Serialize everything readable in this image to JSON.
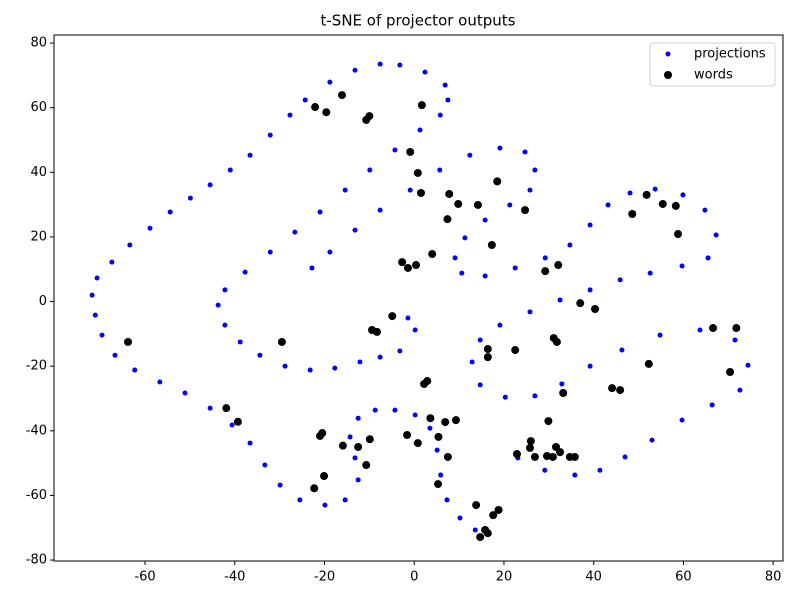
{
  "chart_data": {
    "type": "scatter",
    "title": "t-SNE of projector outputs",
    "xlim": [
      -80.3,
      82.2
    ],
    "ylim": [
      -80.3,
      82.5
    ],
    "xticks": [
      -60,
      -40,
      -20,
      0,
      20,
      40,
      60,
      80
    ],
    "yticks": [
      -80,
      -60,
      -40,
      -20,
      0,
      20,
      40,
      60,
      80
    ],
    "grid": false,
    "legend": "upper right",
    "series": [
      {
        "name": "projections",
        "color": "#0000ff",
        "x": [
          -1.4,
          0.2,
          -3.2,
          -7.6,
          -12.1,
          -17.7,
          -23.2,
          -28.8,
          -34.4,
          -38.8,
          -42.2,
          -43.7,
          -42.2,
          -37.7,
          -32.1,
          -26.6,
          -21.0,
          -15.4,
          -9.9,
          -4.3,
          1.3,
          5.8,
          7.5,
          6.9,
          2.4,
          -3.2,
          -7.6,
          -13.2,
          -18.8,
          -24.3,
          -27.7,
          -32.1,
          -36.6,
          -41.0,
          -45.5,
          -49.9,
          -54.4,
          -58.9,
          -63.4,
          -67.4,
          -70.7,
          -71.8,
          -71.1,
          -69.6,
          -66.7,
          -62.3,
          -56.7,
          -51.1,
          -45.5,
          -40.6,
          -36.6,
          -33.3,
          -29.9,
          -25.5,
          -19.9,
          -15.4,
          -12.5,
          -13.2,
          -14.3,
          -12.5,
          -8.7,
          -4.3,
          0.2,
          3.5,
          5.1,
          5.9,
          7.3,
          10.2,
          13.6,
          -22.8,
          -18.8,
          -13.2,
          -7.6,
          -0.9,
          5.7,
          12.4,
          19.1,
          24.7,
          26.9,
          25.8,
          21.3,
          15.8,
          11.3,
          9.1,
          10.6,
          15.8,
          22.5,
          29.2,
          34.7,
          39.2,
          43.2,
          48.1,
          53.7,
          59.9,
          64.8,
          67.3,
          65.5,
          59.7,
          52.6,
          45.9,
          39.2,
          32.5,
          25.8,
          19.1,
          14.7,
          12.9,
          14.7,
          20.3,
          26.9,
          32.9,
          39.2,
          46.3,
          54.8,
          63.7,
          71.5,
          74.4,
          72.6,
          66.4,
          59.7,
          53.0,
          47.0,
          41.4,
          35.8,
          29.1,
          23.1
        ],
        "values": [
          -5.1,
          -8.8,
          -15.3,
          -17.2,
          -18.7,
          -20.6,
          -21.2,
          -20.0,
          -16.6,
          -12.5,
          -7.3,
          -1.1,
          3.6,
          9.1,
          15.3,
          21.5,
          27.7,
          34.5,
          40.7,
          46.9,
          53.1,
          57.7,
          62.4,
          67.0,
          71.0,
          73.2,
          73.5,
          71.6,
          67.9,
          62.4,
          57.7,
          51.5,
          45.3,
          40.7,
          36.1,
          32.0,
          27.7,
          22.7,
          17.5,
          12.2,
          7.3,
          2.0,
          -4.2,
          -10.4,
          -16.6,
          -21.2,
          -24.9,
          -28.3,
          -33.0,
          -38.2,
          -43.8,
          -50.6,
          -56.8,
          -61.4,
          -63.0,
          -61.4,
          -55.2,
          -48.4,
          -41.9,
          -36.1,
          -33.6,
          -33.6,
          -35.1,
          -39.2,
          -46.0,
          -53.7,
          -61.4,
          -67.0,
          -70.7,
          10.4,
          15.3,
          22.1,
          28.3,
          34.5,
          40.7,
          45.3,
          47.5,
          46.3,
          40.7,
          34.5,
          29.9,
          25.2,
          19.7,
          13.5,
          8.8,
          7.9,
          10.4,
          13.5,
          17.5,
          23.7,
          29.9,
          33.6,
          34.8,
          33.0,
          28.3,
          20.6,
          13.5,
          11.0,
          8.8,
          6.7,
          3.6,
          0.5,
          -3.2,
          -7.3,
          -11.9,
          -18.7,
          -25.8,
          -29.6,
          -29.2,
          -25.5,
          -20.0,
          -15.0,
          -10.4,
          -8.8,
          -11.9,
          -19.7,
          -27.4,
          -32.0,
          -36.7,
          -42.9,
          -48.1,
          -52.2,
          -53.7,
          -52.2,
          -48.4
        ]
      },
      {
        "name": "words",
        "color": "#000000",
        "x": [
          -22.1,
          -19.6,
          -16.1,
          -10.7,
          -10.0,
          1.7,
          -0.9,
          0.8,
          1.5,
          7.4,
          7.8,
          9.8,
          14.2,
          18.5,
          24.7,
          17.3,
          4.0,
          -2.7,
          -1.4,
          0.4,
          -4.9,
          -9.4,
          -8.3,
          -29.5,
          -63.8,
          29.2,
          32.1,
          37.0,
          40.3,
          48.6,
          51.8,
          55.4,
          58.3,
          58.8,
          16.4,
          16.4,
          22.5,
          31.1,
          31.8,
          33.2,
          44.1,
          45.9,
          52.3,
          66.6,
          71.8,
          70.4,
          -41.9,
          -39.3,
          -20.5,
          -21.0,
          -9.9,
          -15.9,
          -12.5,
          -10.7,
          -20.1,
          -22.3,
          -1.6,
          0.8,
          3.6,
          5.4,
          6.9,
          9.3,
          2.2,
          2.9,
          7.5,
          5.3,
          13.8,
          14.7,
          16.4,
          15.8,
          17.6,
          18.8,
          22.9,
          26.0,
          25.8,
          26.9,
          29.9,
          29.6,
          30.9,
          32.5,
          34.7,
          35.8,
          31.6
        ],
        "values": [
          60.2,
          58.6,
          63.9,
          56.2,
          57.4,
          60.8,
          46.3,
          39.8,
          33.6,
          25.5,
          33.3,
          30.2,
          29.9,
          37.2,
          28.3,
          17.5,
          14.7,
          12.2,
          10.4,
          11.3,
          -4.5,
          -8.8,
          -9.4,
          -12.5,
          -12.5,
          9.4,
          11.3,
          -0.5,
          -2.3,
          27.1,
          33.0,
          30.2,
          29.6,
          20.9,
          -14.7,
          -17.2,
          -15.0,
          -11.3,
          -12.5,
          -28.3,
          -26.8,
          -27.4,
          -19.3,
          -8.2,
          -8.2,
          -21.8,
          -33.0,
          -37.2,
          -40.7,
          -41.6,
          -42.6,
          -44.6,
          -45.0,
          -50.6,
          -54.0,
          -57.8,
          -41.3,
          -43.8,
          -36.1,
          -41.9,
          -37.3,
          -36.7,
          -25.5,
          -24.6,
          -48.1,
          -56.5,
          -63.0,
          -72.9,
          -71.7,
          -70.7,
          -66.1,
          -64.5,
          -47.2,
          -43.2,
          -45.3,
          -48.1,
          -37.0,
          -47.8,
          -48.1,
          -46.6,
          -48.1,
          -48.1,
          -45.0
        ]
      }
    ]
  }
}
